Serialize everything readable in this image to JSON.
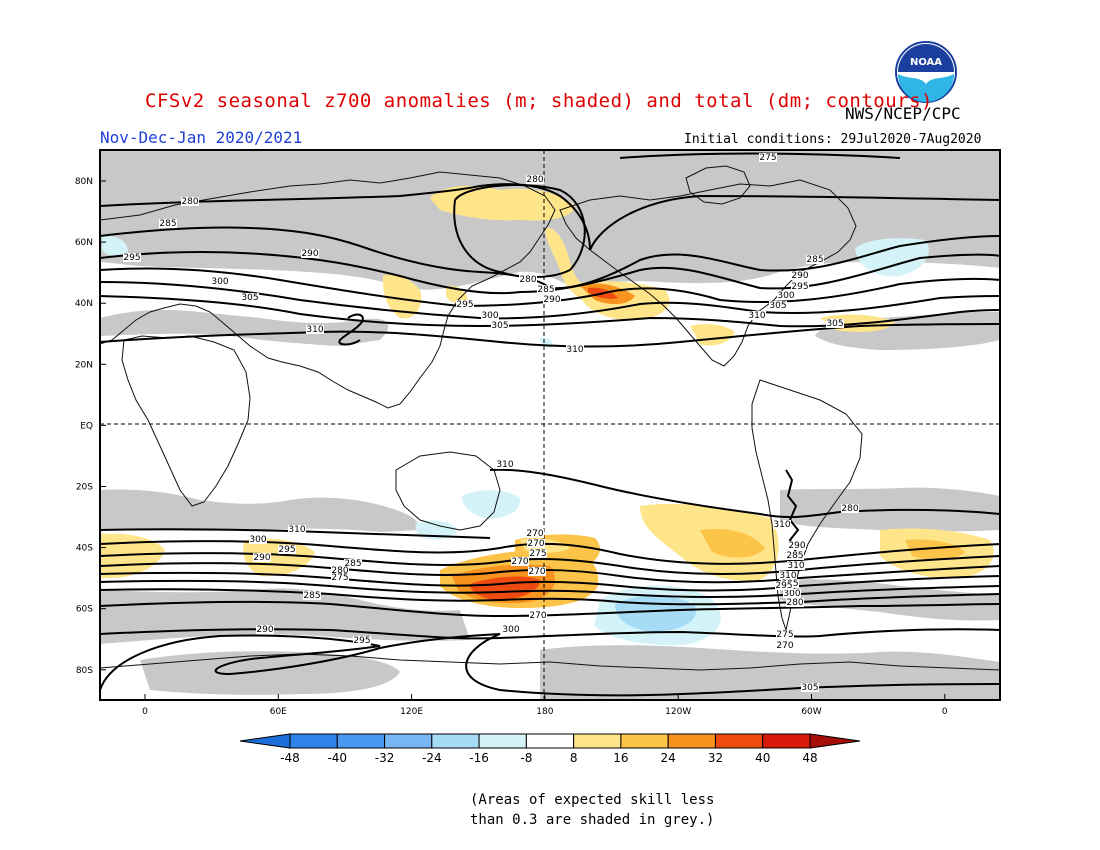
{
  "header": {
    "title": "CFSv2 seasonal z700 anomalies (m; shaded) and total (dm; contours)",
    "credit": "NWS/NCEP/CPC",
    "period": "Nov-Dec-Jan 2020/2021",
    "initial_conditions": "Initial conditions: 29Jul2020-7Aug2020",
    "logo_text": "NOAA"
  },
  "colors": {
    "title": "#e00000",
    "period": "#1f3fd6",
    "grey_mask": "#c8c8c8",
    "contour": "#000000"
  },
  "map": {
    "lat_labels": [
      "80N",
      "60N",
      "40N",
      "20N",
      "EQ",
      "20S",
      "40S",
      "60S",
      "80S"
    ],
    "lon_labels": [
      "0",
      "60E",
      "120E",
      "180",
      "120W",
      "60W",
      "0"
    ],
    "contour_labels_dm": [
      "275",
      "280",
      "280",
      "285",
      "290",
      "295",
      "300",
      "305",
      "310",
      "280",
      "285",
      "290",
      "295",
      "300",
      "305",
      "310",
      "310",
      "310",
      "310",
      "280",
      "285",
      "290",
      "295",
      "300",
      "305",
      "310",
      "305",
      "300",
      "295",
      "290",
      "285",
      "280",
      "275",
      "270",
      "270",
      "275",
      "270",
      "270",
      "285",
      "290",
      "295",
      "300",
      "305",
      "310",
      "310",
      "305",
      "300",
      "295",
      "290",
      "285",
      "280",
      "275",
      "270",
      "270"
    ]
  },
  "colorbar": {
    "ticks": [
      "-48",
      "-40",
      "-32",
      "-24",
      "-16",
      "-8",
      "8",
      "16",
      "24",
      "32",
      "40",
      "48"
    ],
    "colors": [
      "#1e6fd9",
      "#2f82e8",
      "#4a98ef",
      "#78b6f4",
      "#a6dbf5",
      "#d4f3f8",
      "#ffffff",
      "#ffe58a",
      "#fdc44a",
      "#f7931e",
      "#ef4b10",
      "#d71a0c",
      "#a50d08"
    ]
  },
  "footnote": {
    "line1": "(Areas of expected skill less",
    "line2": "than 0.3 are shaded in grey.)"
  }
}
